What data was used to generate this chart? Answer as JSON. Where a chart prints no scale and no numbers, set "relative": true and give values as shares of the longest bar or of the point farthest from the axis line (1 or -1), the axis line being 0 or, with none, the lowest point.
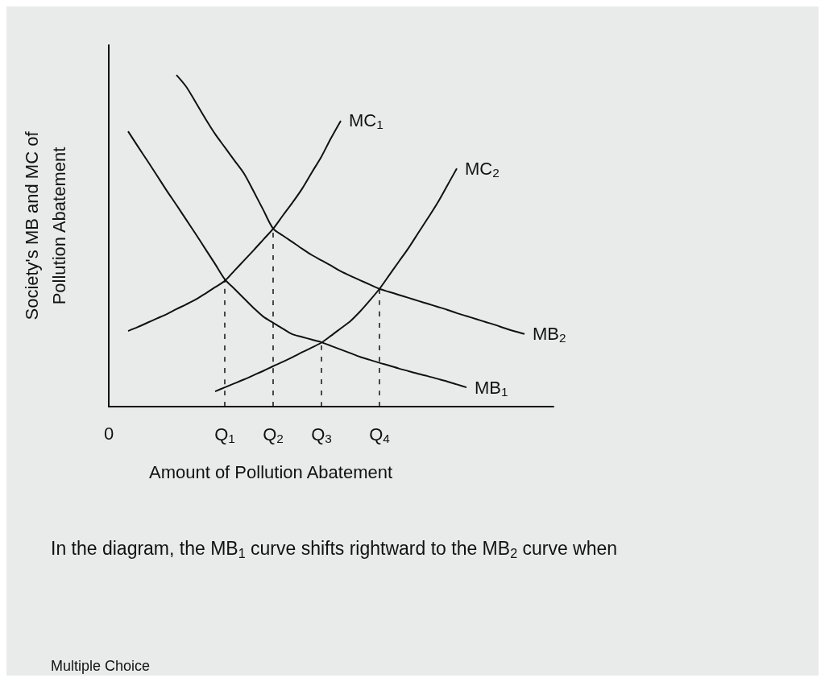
{
  "chart_data": {
    "type": "line",
    "relative": true,
    "xlabel": "Amount of Pollution Abatement",
    "ylabel": "Society's MB and MC of\nPollution Abatement",
    "categories": [
      "0",
      null,
      null,
      null,
      null,
      null,
      null,
      null,
      null,
      null,
      null,
      null,
      "Q$_{1}$",
      null,
      null,
      null,
      null,
      "Q$_{2}$",
      null,
      null,
      null,
      null,
      "Q$_{3}$",
      null,
      null,
      null,
      null,
      null,
      "Q$_{4}$",
      null,
      null,
      null,
      null,
      null,
      null,
      null,
      null,
      null,
      null,
      null,
      null,
      null,
      null,
      null,
      null,
      null,
      null
    ],
    "grid": false,
    "legend": false,
    "marker": "none",
    "line_style": "solid",
    "series": [
      {
        "name": "MB$_{1}$",
        "color": "#111111",
        "values": [
          null,
          null,
          0.83,
          0.785,
          0.741,
          0.696,
          0.651,
          0.608,
          0.564,
          0.52,
          0.475,
          0.43,
          0.384,
          0.355,
          0.326,
          0.297,
          0.271,
          0.253,
          0.235,
          0.218,
          0.21,
          0.202,
          0.194,
          0.183,
          0.172,
          0.161,
          0.15,
          0.141,
          0.132,
          0.124,
          0.115,
          0.107,
          0.099,
          0.092,
          0.084,
          0.076,
          0.067,
          0.058,
          null,
          null,
          null,
          null,
          null,
          null,
          null,
          null,
          null
        ]
      },
      {
        "name": "MB$_{2}$",
        "color": "#111111",
        "values": [
          null,
          null,
          null,
          null,
          null,
          null,
          null,
          1.0,
          0.965,
          0.917,
          0.868,
          0.822,
          0.782,
          0.742,
          0.702,
          0.648,
          0.592,
          0.537,
          0.516,
          0.496,
          0.476,
          0.457,
          0.441,
          0.425,
          0.408,
          0.394,
          0.381,
          0.368,
          0.355,
          0.346,
          0.337,
          0.328,
          0.319,
          0.31,
          0.301,
          0.292,
          0.282,
          0.273,
          0.264,
          0.255,
          0.246,
          0.236,
          0.227,
          0.219,
          null,
          null,
          null
        ]
      },
      {
        "name": "MC$_{1}$",
        "color": "#111111",
        "values": [
          null,
          null,
          0.228,
          0.24,
          0.253,
          0.266,
          0.279,
          0.294,
          0.308,
          0.323,
          0.341,
          0.36,
          0.379,
          0.41,
          0.441,
          0.472,
          0.504,
          0.536,
          0.576,
          0.615,
          0.657,
          0.706,
          0.754,
          0.81,
          0.862,
          null,
          null,
          null,
          null,
          null,
          null,
          null,
          null,
          null,
          null,
          null,
          null,
          null,
          null,
          null,
          null,
          null,
          null,
          null,
          null,
          null,
          null
        ]
      },
      {
        "name": "MC$_{2}$",
        "color": "#111111",
        "values": [
          null,
          null,
          null,
          null,
          null,
          null,
          null,
          null,
          null,
          null,
          null,
          0.046,
          0.058,
          0.07,
          0.082,
          0.095,
          0.108,
          0.122,
          0.135,
          0.149,
          0.164,
          0.178,
          0.193,
          0.214,
          0.236,
          0.258,
          0.287,
          0.32,
          0.355,
          0.396,
          0.437,
          0.478,
          0.523,
          0.568,
          0.614,
          0.666,
          0.718,
          null,
          null,
          null,
          null,
          null,
          null,
          null,
          null,
          null,
          null
        ]
      },
      {
        "color": "#111111",
        "line_style": "dashed",
        "x": [
          "Q$_{1}$",
          "Q$_{1}$"
        ],
        "values": [
          0,
          0.384
        ]
      },
      {
        "color": "#111111",
        "line_style": "dashed",
        "x": [
          "Q$_{2}$",
          "Q$_{2}$"
        ],
        "values": [
          0,
          0.537
        ]
      },
      {
        "color": "#111111",
        "line_style": "dashed",
        "x": [
          "Q$_{3}$",
          "Q$_{3}$"
        ],
        "values": [
          0,
          0.194
        ]
      },
      {
        "color": "#111111",
        "line_style": "dashed",
        "x": [
          "Q$_{4}$",
          "Q$_{4}$"
        ],
        "values": [
          0,
          0.355
        ]
      }
    ],
    "annotations": [
      "In the diagram, the MB$_{1}$ curve shifts rightward to the MB$_{2}$ curve when",
      "Multiple Choice"
    ]
  }
}
